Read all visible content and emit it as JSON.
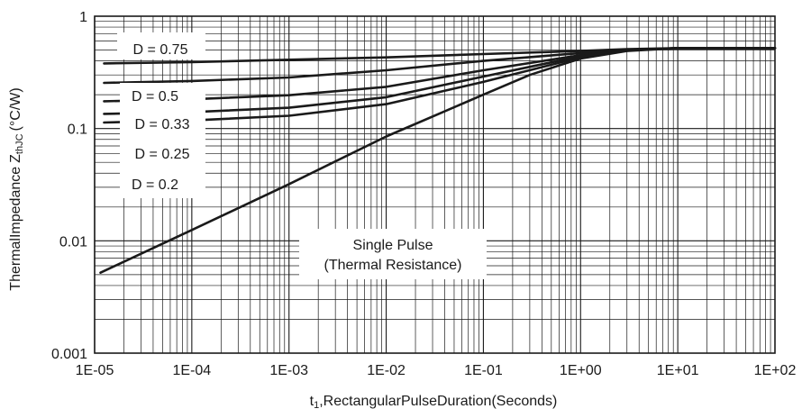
{
  "chart_data": {
    "type": "line",
    "xscale": "log",
    "yscale": "log",
    "xlim": [
      1e-05,
      100
    ],
    "ylim": [
      0.001,
      1
    ],
    "grid": true,
    "x_ticks": [
      "1E-05",
      "1E-04",
      "1E-03",
      "1E-02",
      "1E-01",
      "1E+00",
      "1E+01",
      "1E+02"
    ],
    "y_ticks": [
      "1",
      "0.1",
      "0.01",
      "0.001"
    ],
    "xlabel": {
      "prefix": "t",
      "sub": "1",
      "rest": ",RectangularPulseDuration(Seconds)"
    },
    "ylabel": {
      "main": "ThermalImpedance",
      "z": "Z",
      "sub": "thJC",
      "unit": "(°C/W)"
    },
    "legend_labels": [
      "D = 0.75",
      "D = 0.5",
      "D = 0.33",
      "D = 0.25",
      "D = 0.2"
    ],
    "single_pulse_label": [
      "Single Pulse",
      "(Thermal Resistance)"
    ],
    "series": [
      {
        "x": [
          1.25e-05,
          0.0001,
          0.001,
          0.01,
          0.1,
          1,
          3,
          10,
          100
        ],
        "y": [
          0.38,
          0.39,
          0.41,
          0.43,
          0.46,
          0.49,
          0.51,
          0.52,
          0.52
        ]
      },
      {
        "x": [
          1.25e-05,
          0.0001,
          0.001,
          0.01,
          0.1,
          1,
          3,
          10,
          100
        ],
        "y": [
          0.255,
          0.265,
          0.285,
          0.33,
          0.4,
          0.47,
          0.5,
          0.52,
          0.52
        ]
      },
      {
        "x": [
          1.25e-05,
          0.0001,
          0.001,
          0.01,
          0.1,
          1,
          3,
          10,
          100
        ],
        "y": [
          0.175,
          0.182,
          0.198,
          0.235,
          0.33,
          0.45,
          0.5,
          0.52,
          0.52
        ]
      },
      {
        "x": [
          1.25e-05,
          0.0001,
          0.001,
          0.01,
          0.1,
          1,
          3,
          10,
          100
        ],
        "y": [
          0.135,
          0.14,
          0.153,
          0.19,
          0.29,
          0.44,
          0.5,
          0.52,
          0.52
        ]
      },
      {
        "x": [
          1.25e-05,
          0.0001,
          0.001,
          0.01,
          0.1,
          1,
          3,
          10,
          100
        ],
        "y": [
          0.113,
          0.118,
          0.13,
          0.165,
          0.26,
          0.43,
          0.5,
          0.52,
          0.52
        ]
      },
      {
        "x": [
          1.15e-05,
          0.0001,
          0.001,
          0.01,
          0.1,
          0.3,
          1,
          3,
          10,
          100
        ],
        "y": [
          0.0052,
          0.0125,
          0.032,
          0.085,
          0.2,
          0.3,
          0.42,
          0.49,
          0.52,
          0.52
        ]
      }
    ]
  }
}
